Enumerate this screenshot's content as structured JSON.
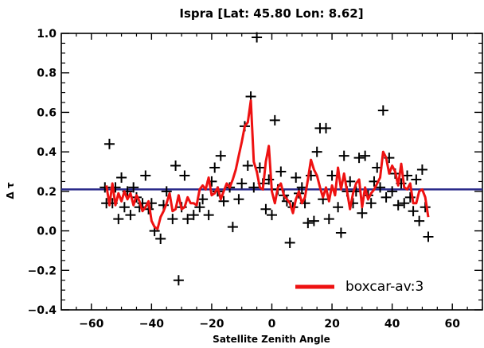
{
  "chart_data": {
    "type": "scatter",
    "title": "Ispra [Lat: 45.80 Lon: 8.62]",
    "xlabel": "Satellite Zenith Angle",
    "ylabel": "Δ τ",
    "xlim": [
      -70,
      70
    ],
    "ylim": [
      -0.4,
      1.0
    ],
    "xticks": [
      -60,
      -40,
      -20,
      0,
      20,
      40,
      60
    ],
    "xtick_labels": [
      "−60",
      "−40",
      "−20",
      "0",
      "20",
      "40",
      "60"
    ],
    "yticks": [
      -0.4,
      -0.2,
      0.0,
      0.2,
      0.4,
      0.6,
      0.8,
      1.0
    ],
    "ytick_labels": [
      "−0.4",
      "−0.2",
      "0.0",
      "0.2",
      "0.4",
      "0.6",
      "0.8",
      "1.0"
    ],
    "grid": false,
    "legend_position": "bottom-right",
    "points": [
      {
        "x": -55.5,
        "y": 0.22
      },
      {
        "x": -55.0,
        "y": 0.14
      },
      {
        "x": -54.0,
        "y": 0.44
      },
      {
        "x": -53.0,
        "y": 0.14
      },
      {
        "x": -52.0,
        "y": 0.22
      },
      {
        "x": -51.0,
        "y": 0.06
      },
      {
        "x": -50.0,
        "y": 0.27
      },
      {
        "x": -49.0,
        "y": 0.12
      },
      {
        "x": -48.0,
        "y": 0.2
      },
      {
        "x": -47.0,
        "y": 0.08
      },
      {
        "x": -46.0,
        "y": 0.22
      },
      {
        "x": -45.0,
        "y": 0.17
      },
      {
        "x": -44.0,
        "y": 0.12
      },
      {
        "x": -43.0,
        "y": 0.14
      },
      {
        "x": -42.0,
        "y": 0.28
      },
      {
        "x": -41.0,
        "y": 0.11
      },
      {
        "x": -40.0,
        "y": 0.14
      },
      {
        "x": -39.0,
        "y": 0.0
      },
      {
        "x": -37.0,
        "y": -0.04
      },
      {
        "x": -36.0,
        "y": 0.13
      },
      {
        "x": -35.0,
        "y": 0.2
      },
      {
        "x": -33.0,
        "y": 0.06
      },
      {
        "x": -32.0,
        "y": 0.33
      },
      {
        "x": -31.0,
        "y": -0.25
      },
      {
        "x": -30.0,
        "y": 0.12
      },
      {
        "x": -29.0,
        "y": 0.28
      },
      {
        "x": -28.0,
        "y": 0.06
      },
      {
        "x": -26.0,
        "y": 0.08
      },
      {
        "x": -24.0,
        "y": 0.12
      },
      {
        "x": -23.0,
        "y": 0.16
      },
      {
        "x": -21.0,
        "y": 0.08
      },
      {
        "x": -20.0,
        "y": 0.25
      },
      {
        "x": -19.0,
        "y": 0.32
      },
      {
        "x": -18.0,
        "y": 0.2
      },
      {
        "x": -17.0,
        "y": 0.38
      },
      {
        "x": -16.0,
        "y": 0.15
      },
      {
        "x": -14.0,
        "y": 0.22
      },
      {
        "x": -13.0,
        "y": 0.02
      },
      {
        "x": -11.0,
        "y": 0.16
      },
      {
        "x": -10.0,
        "y": 0.24
      },
      {
        "x": -9.0,
        "y": 0.53
      },
      {
        "x": -8.0,
        "y": 0.33
      },
      {
        "x": -7.0,
        "y": 0.68
      },
      {
        "x": -6.0,
        "y": 0.22
      },
      {
        "x": -5.0,
        "y": 0.98
      },
      {
        "x": -4.0,
        "y": 0.32
      },
      {
        "x": -3.0,
        "y": 0.24
      },
      {
        "x": -2.0,
        "y": 0.11
      },
      {
        "x": -1.0,
        "y": 0.26
      },
      {
        "x": 0.0,
        "y": 0.08
      },
      {
        "x": 1.0,
        "y": 0.56
      },
      {
        "x": 2.0,
        "y": 0.21
      },
      {
        "x": 3.0,
        "y": 0.3
      },
      {
        "x": 4.0,
        "y": 0.18
      },
      {
        "x": 5.0,
        "y": 0.15
      },
      {
        "x": 6.0,
        "y": -0.06
      },
      {
        "x": 7.0,
        "y": 0.12
      },
      {
        "x": 8.0,
        "y": 0.27
      },
      {
        "x": 9.0,
        "y": 0.19
      },
      {
        "x": 10.0,
        "y": 0.22
      },
      {
        "x": 11.0,
        "y": 0.14
      },
      {
        "x": 12.0,
        "y": 0.04
      },
      {
        "x": 13.0,
        "y": 0.28
      },
      {
        "x": 14.0,
        "y": 0.05
      },
      {
        "x": 15.0,
        "y": 0.4
      },
      {
        "x": 16.0,
        "y": 0.52
      },
      {
        "x": 17.0,
        "y": 0.16
      },
      {
        "x": 18.0,
        "y": 0.52
      },
      {
        "x": 19.0,
        "y": 0.06
      },
      {
        "x": 20.0,
        "y": 0.28
      },
      {
        "x": 22.0,
        "y": 0.12
      },
      {
        "x": 23.0,
        "y": -0.01
      },
      {
        "x": 24.0,
        "y": 0.38
      },
      {
        "x": 25.0,
        "y": 0.2
      },
      {
        "x": 26.0,
        "y": 0.25
      },
      {
        "x": 27.0,
        "y": 0.14
      },
      {
        "x": 28.0,
        "y": 0.2
      },
      {
        "x": 29.0,
        "y": 0.37
      },
      {
        "x": 30.0,
        "y": 0.09
      },
      {
        "x": 31.0,
        "y": 0.38
      },
      {
        "x": 32.0,
        "y": 0.18
      },
      {
        "x": 33.0,
        "y": 0.14
      },
      {
        "x": 34.0,
        "y": 0.25
      },
      {
        "x": 35.0,
        "y": 0.32
      },
      {
        "x": 36.0,
        "y": 0.22
      },
      {
        "x": 37.0,
        "y": 0.61
      },
      {
        "x": 38.0,
        "y": 0.17
      },
      {
        "x": 39.0,
        "y": 0.37
      },
      {
        "x": 40.0,
        "y": 0.2
      },
      {
        "x": 41.0,
        "y": 0.29
      },
      {
        "x": 42.0,
        "y": 0.13
      },
      {
        "x": 43.0,
        "y": 0.24
      },
      {
        "x": 44.0,
        "y": 0.14
      },
      {
        "x": 45.0,
        "y": 0.28
      },
      {
        "x": 46.0,
        "y": 0.17
      },
      {
        "x": 47.0,
        "y": 0.1
      },
      {
        "x": 48.0,
        "y": 0.26
      },
      {
        "x": 49.0,
        "y": 0.05
      },
      {
        "x": 50.0,
        "y": 0.31
      },
      {
        "x": 51.0,
        "y": 0.12
      },
      {
        "x": 52.0,
        "y": -0.03
      }
    ],
    "series": [
      {
        "name": "boxcar-av:3",
        "color": "#ee1111",
        "x": [
          -55,
          -54,
          -53,
          -52,
          -51,
          -50,
          -49,
          -48,
          -47,
          -46,
          -45,
          -44,
          -43,
          -42,
          -41,
          -40,
          -39,
          -38,
          -37,
          -36,
          -35,
          -34,
          -33,
          -32,
          -31,
          -30,
          -29,
          -28,
          -27,
          -26,
          -25,
          -24,
          -23,
          -22,
          -21,
          -20,
          -19,
          -18,
          -17,
          -16,
          -15,
          -14,
          -13,
          -12,
          -11,
          -10,
          -9,
          -8,
          -7,
          -6,
          -5,
          -4,
          -3,
          -2,
          -1,
          0,
          1,
          2,
          3,
          4,
          5,
          6,
          7,
          8,
          9,
          10,
          11,
          12,
          13,
          14,
          15,
          16,
          17,
          18,
          19,
          20,
          21,
          22,
          23,
          24,
          25,
          26,
          27,
          28,
          29,
          30,
          31,
          32,
          33,
          34,
          35,
          36,
          37,
          38,
          39,
          40,
          41,
          42,
          43,
          44,
          45,
          46,
          47,
          48,
          49,
          50,
          51,
          52
        ],
        "y": [
          0.23,
          0.13,
          0.24,
          0.13,
          0.19,
          0.15,
          0.2,
          0.16,
          0.19,
          0.13,
          0.18,
          0.15,
          0.1,
          0.12,
          0.15,
          0.05,
          0.02,
          0.01,
          0.07,
          0.1,
          0.14,
          0.19,
          0.1,
          0.11,
          0.18,
          0.11,
          0.12,
          0.17,
          0.14,
          0.14,
          0.13,
          0.21,
          0.23,
          0.21,
          0.27,
          0.18,
          0.19,
          0.22,
          0.16,
          0.2,
          0.24,
          0.22,
          0.26,
          0.31,
          0.38,
          0.45,
          0.53,
          0.55,
          0.66,
          0.35,
          0.3,
          0.22,
          0.21,
          0.35,
          0.43,
          0.2,
          0.14,
          0.22,
          0.24,
          0.18,
          0.16,
          0.14,
          0.09,
          0.16,
          0.2,
          0.14,
          0.17,
          0.26,
          0.36,
          0.31,
          0.28,
          0.22,
          0.17,
          0.22,
          0.15,
          0.23,
          0.18,
          0.32,
          0.21,
          0.29,
          0.2,
          0.11,
          0.19,
          0.24,
          0.26,
          0.12,
          0.22,
          0.16,
          0.19,
          0.21,
          0.24,
          0.27,
          0.4,
          0.37,
          0.29,
          0.33,
          0.3,
          0.23,
          0.34,
          0.22,
          0.21,
          0.24,
          0.14,
          0.14,
          0.2,
          0.21,
          0.17,
          0.07
        ]
      }
    ],
    "reference_line": {
      "y": 0.21,
      "color": "#2a2a8a"
    }
  }
}
